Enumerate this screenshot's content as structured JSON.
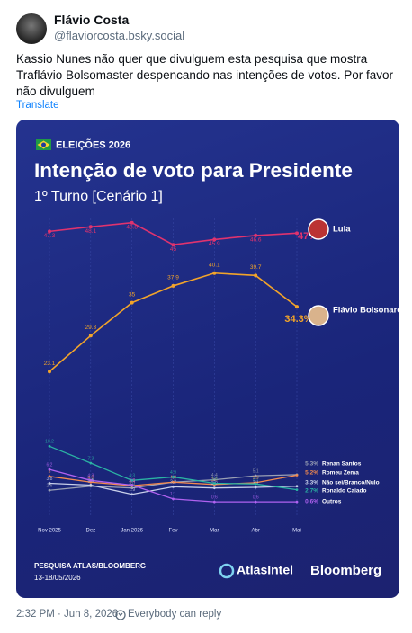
{
  "post": {
    "author": "Flávio Costa",
    "handle": "@flaviorcosta.bsky.social",
    "text": "Kassio Nunes não quer que divulguem esta pesquisa que mostra Traflávio Bolsomaster despencando nas intenções de votos. Por favor não divulguem",
    "translate": "Translate",
    "timestamp": "2:32 PM · Jun 8, 2026",
    "reply_setting": "Everybody can reply"
  },
  "chart_data": {
    "type": "line",
    "title": "Intenção de voto para Presidente",
    "subtitle": "1º Turno [Cenário 1]",
    "annotations": [
      "ELEIÇÕES 2026",
      "PESQUISA ATLAS/BLOOMBERG",
      "13-18/05/2026",
      "AtlasIntel",
      "Bloomberg"
    ],
    "categories": [
      "Nov 2025",
      "Dez",
      "Jan 2026",
      "Fev",
      "Mar",
      "Abr",
      "Mai"
    ],
    "ylim": [
      0,
      50
    ],
    "series": [
      {
        "name": "Lula",
        "color": "#e0336e",
        "values": [
          47.3,
          48.1,
          48.8,
          45,
          45.9,
          46.6,
          47
        ],
        "value_labels": [
          "47.3",
          "48.1",
          "48.8",
          "45",
          "45.9",
          "46.6",
          "47%"
        ]
      },
      {
        "name": "Flávio Bolsonaro",
        "color": "#f2a42a",
        "values": [
          23.1,
          29.3,
          35,
          37.9,
          40.1,
          39.7,
          34.3
        ],
        "value_labels": [
          "23.1",
          "29.3",
          "35",
          "37.9",
          "40.1",
          "39.7",
          "34.3%"
        ]
      },
      {
        "name": "Renan Santos",
        "color": "#9aa0b4",
        "values": [
          2.6,
          3.3,
          3.0,
          4.0,
          4.4,
          5.1,
          5.3
        ],
        "value_labels": [
          "2.6",
          "3.3",
          "3.0",
          "4.0",
          "4.4",
          "5.1",
          "5.3%"
        ]
      },
      {
        "name": "Romeu Zema",
        "color": "#f48a4e",
        "values": [
          5,
          4.0,
          3.4,
          4.0,
          3.6,
          3.9,
          5.2
        ],
        "value_labels": [
          "5",
          "4.0",
          "3.4",
          "4.0",
          "3.6",
          "3.9",
          "5.2%"
        ]
      },
      {
        "name": "Não sei/Branco/Nulo",
        "color": "#c9d0ea",
        "values": [
          3.8,
          3.5,
          1.9,
          3.2,
          3.0,
          3.1,
          3.3
        ],
        "value_labels": [
          "3.8",
          "3.5",
          "1.9",
          "3.2",
          "3.0",
          "3.1",
          "3.3%"
        ]
      },
      {
        "name": "Ronaldo Caiado",
        "color": "#2bb3a3",
        "values": [
          10.2,
          7.3,
          4.3,
          4.9,
          3.8,
          3.7,
          2.7
        ],
        "value_labels": [
          "10.2",
          "7.3",
          "4.3",
          "4.9",
          "3.8",
          "3.7",
          "2.7%"
        ]
      },
      {
        "name": "Outros",
        "color": "#b062f0",
        "values": [
          6.2,
          4.3,
          3.5,
          1.1,
          0.6,
          0.6,
          0.6
        ],
        "value_labels": [
          "6.2",
          "4.3",
          "3.5",
          "1.1",
          "0.6",
          "0.6",
          "0.6%"
        ]
      }
    ]
  }
}
